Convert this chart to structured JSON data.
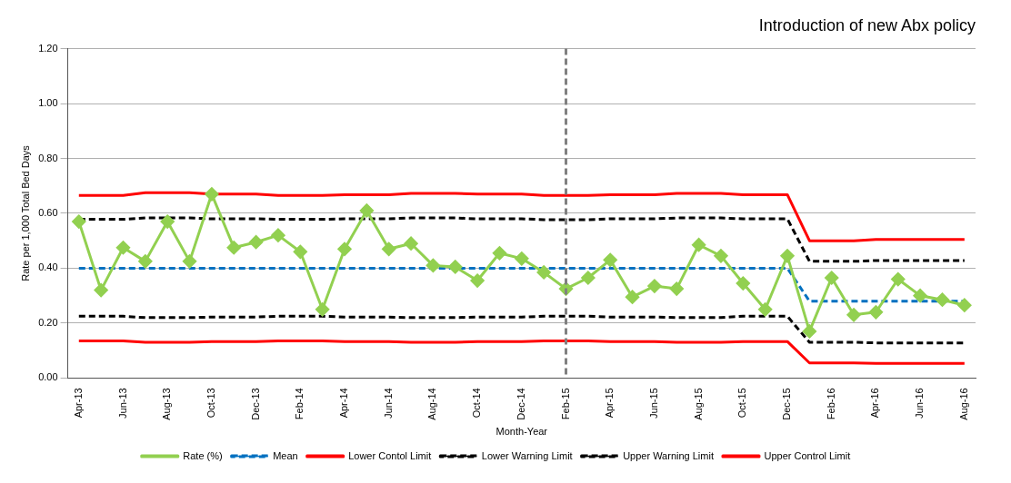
{
  "chart_data": {
    "type": "line",
    "categories": [
      "Apr-13",
      null,
      "Jun-13",
      null,
      "Aug-13",
      null,
      "Oct-13",
      null,
      "Dec-13",
      null,
      "Feb-14",
      null,
      "Apr-14",
      null,
      "Jun-14",
      null,
      "Aug-14",
      null,
      "Oct-14",
      null,
      "Dec-14",
      null,
      "Feb-15",
      null,
      "Apr-15",
      null,
      "Jun-15",
      null,
      "Aug-15",
      null,
      "Oct-15",
      null,
      "Dec-15",
      null,
      "Feb-16",
      null,
      "Apr-16",
      null,
      "Jun-16",
      null,
      "Aug-16"
    ],
    "series": [
      {
        "name": "Rate (%)",
        "color": "#92d050",
        "marker": "diamond",
        "line_style": "solid",
        "values": [
          0.57,
          0.32,
          0.475,
          0.425,
          0.57,
          0.425,
          0.67,
          0.475,
          0.495,
          0.52,
          0.46,
          0.25,
          0.47,
          0.61,
          0.47,
          0.49,
          0.41,
          0.405,
          0.355,
          0.455,
          0.435,
          0.385,
          0.325,
          0.365,
          0.43,
          0.295,
          0.335,
          0.325,
          0.485,
          0.445,
          0.345,
          0.25,
          0.445,
          0.17,
          0.365,
          0.23,
          0.24,
          0.36,
          0.3,
          0.285,
          0.265
        ]
      },
      {
        "name": "Mean",
        "color": "#0070c0",
        "marker": "none",
        "line_style": "dashed",
        "values": [
          0.4,
          0.4,
          0.4,
          0.4,
          0.4,
          0.4,
          0.4,
          0.4,
          0.4,
          0.4,
          0.4,
          0.4,
          0.4,
          0.4,
          0.4,
          0.4,
          0.4,
          0.4,
          0.4,
          0.4,
          0.4,
          0.4,
          0.4,
          0.4,
          0.4,
          0.4,
          0.4,
          0.4,
          0.4,
          0.4,
          0.4,
          0.4,
          0.4,
          0.28,
          0.28,
          0.28,
          0.28,
          0.28,
          0.28,
          0.28,
          0.28
        ]
      },
      {
        "name": "Lower Contol Limit",
        "color": "#ff0000",
        "marker": "none",
        "line_style": "solid",
        "values": [
          0.135,
          0.135,
          0.135,
          0.13,
          0.13,
          0.13,
          0.133,
          0.133,
          0.133,
          0.135,
          0.135,
          0.135,
          0.133,
          0.133,
          0.133,
          0.13,
          0.13,
          0.13,
          0.133,
          0.133,
          0.133,
          0.135,
          0.135,
          0.135,
          0.133,
          0.133,
          0.133,
          0.13,
          0.13,
          0.13,
          0.133,
          0.133,
          0.133,
          0.055,
          0.055,
          0.055,
          0.053,
          0.053,
          0.053,
          0.053,
          0.053
        ]
      },
      {
        "name": "Lower Warning Limit",
        "color": "#000000",
        "marker": "none",
        "line_style": "dashed",
        "values": [
          0.225,
          0.225,
          0.225,
          0.22,
          0.22,
          0.22,
          0.222,
          0.222,
          0.222,
          0.225,
          0.225,
          0.225,
          0.222,
          0.222,
          0.222,
          0.22,
          0.22,
          0.22,
          0.222,
          0.222,
          0.222,
          0.225,
          0.225,
          0.225,
          0.222,
          0.222,
          0.222,
          0.22,
          0.22,
          0.22,
          0.225,
          0.225,
          0.225,
          0.13,
          0.13,
          0.13,
          0.128,
          0.128,
          0.128,
          0.128,
          0.128
        ]
      },
      {
        "name": "Upper Warning Limit",
        "color": "#000000",
        "marker": "none",
        "line_style": "dashed",
        "values": [
          0.578,
          0.578,
          0.578,
          0.583,
          0.583,
          0.583,
          0.58,
          0.58,
          0.58,
          0.578,
          0.578,
          0.578,
          0.58,
          0.58,
          0.58,
          0.583,
          0.583,
          0.583,
          0.58,
          0.58,
          0.58,
          0.577,
          0.577,
          0.577,
          0.58,
          0.58,
          0.58,
          0.583,
          0.583,
          0.583,
          0.58,
          0.58,
          0.58,
          0.425,
          0.425,
          0.425,
          0.428,
          0.428,
          0.428,
          0.428,
          0.428
        ]
      },
      {
        "name": "Upper Control Limit",
        "color": "#ff0000",
        "marker": "none",
        "line_style": "solid",
        "values": [
          0.665,
          0.665,
          0.665,
          0.675,
          0.675,
          0.675,
          0.67,
          0.67,
          0.67,
          0.665,
          0.665,
          0.665,
          0.668,
          0.668,
          0.668,
          0.673,
          0.673,
          0.673,
          0.67,
          0.67,
          0.67,
          0.665,
          0.665,
          0.665,
          0.668,
          0.668,
          0.668,
          0.673,
          0.673,
          0.673,
          0.668,
          0.668,
          0.668,
          0.5,
          0.5,
          0.5,
          0.505,
          0.505,
          0.505,
          0.505,
          0.505
        ]
      }
    ],
    "ylim": [
      0,
      1.2
    ],
    "yticks": [
      {
        "value": 0,
        "label": "0.00"
      },
      {
        "value": 0.2,
        "label": "0.20"
      },
      {
        "value": 0.4,
        "label": "0.40"
      },
      {
        "value": 0.6,
        "label": "0.60"
      },
      {
        "value": 0.8,
        "label": "0.80"
      },
      {
        "value": 1.0,
        "label": "1.00"
      },
      {
        "value": 1.2,
        "label": "1.20"
      }
    ],
    "ylabel": "Rate per 1,000 Total Bed Days",
    "xlabel": "Month-Year",
    "title": "Introduction of new Abx policy",
    "ref_lines": [
      {
        "axis": "x",
        "value": "Feb-15",
        "color": "#808080",
        "line_style": "dashed"
      }
    ],
    "grid": "y",
    "legend": "bottom"
  }
}
